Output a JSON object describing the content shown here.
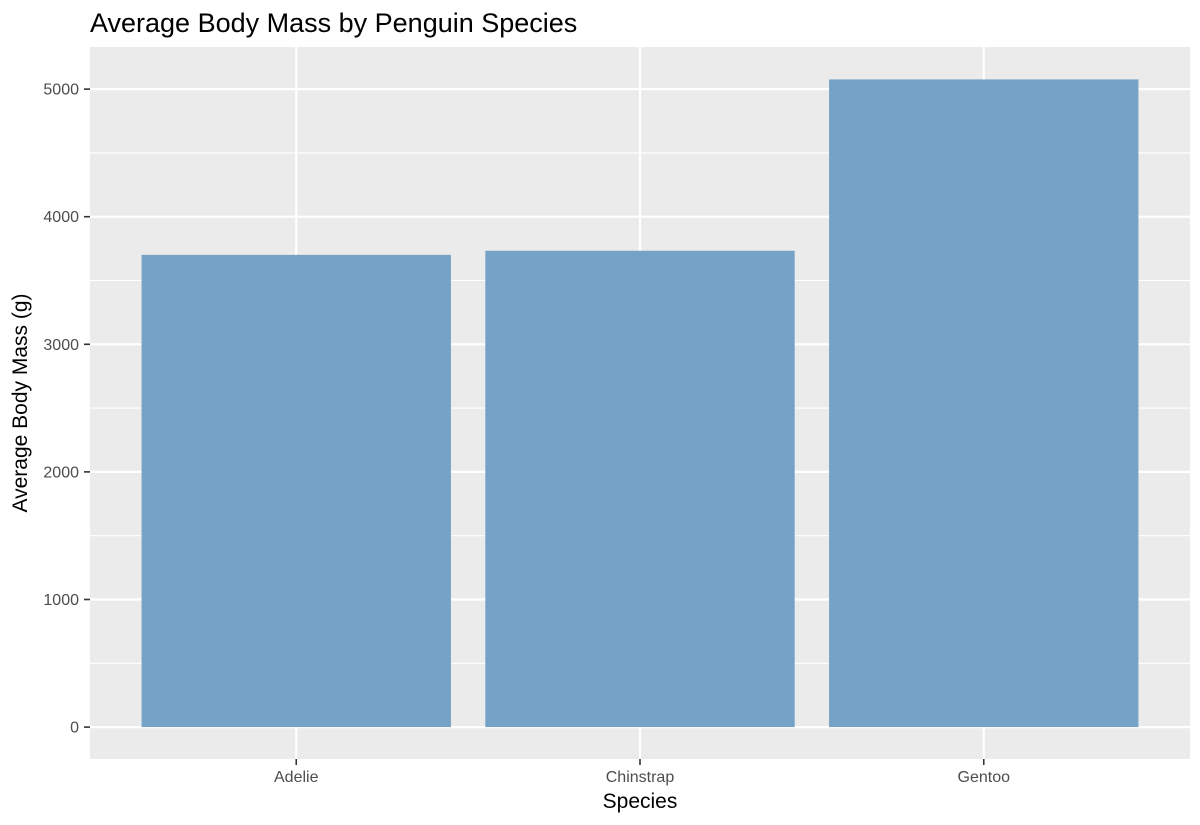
{
  "chart_data": {
    "type": "bar",
    "title": "Average Body Mass by Penguin Species",
    "xlabel": "Species",
    "ylabel": "Average Body Mass (g)",
    "categories": [
      "Adelie",
      "Chinstrap",
      "Gentoo"
    ],
    "values": [
      3701,
      3733,
      5076
    ],
    "ylim": [
      -250,
      5330
    ],
    "yticks": [
      0,
      1000,
      2000,
      3000,
      4000,
      5000
    ],
    "ytick_labels": [
      "0",
      "1000",
      "2000",
      "3000",
      "4000",
      "5000"
    ],
    "grid": true,
    "legend": "none",
    "colors": {
      "bar": "#76a2c6",
      "panel": "#ebebeb",
      "grid": "#ffffff",
      "tick": "#333333",
      "tick_text": "#4d4d4d"
    }
  }
}
